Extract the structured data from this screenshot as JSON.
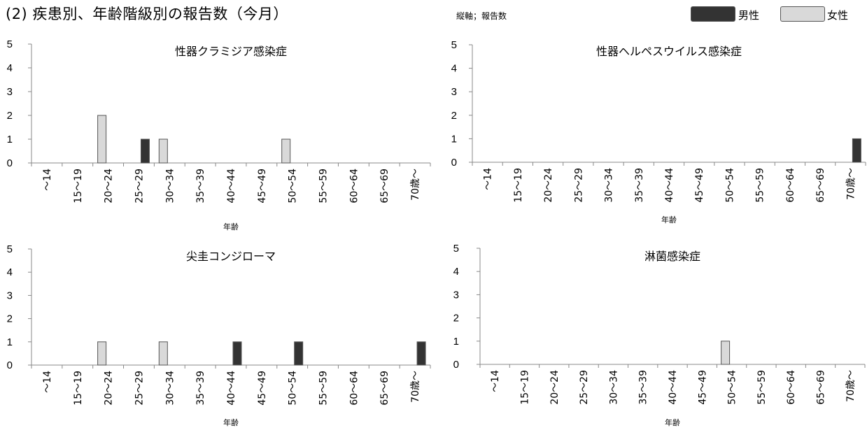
{
  "header": {
    "title": "(2) 疾患別、年齢階級別の報告数（今月）",
    "axis_note": "縦軸；報告数"
  },
  "legend": {
    "male": {
      "label": "男性",
      "color": "#333333"
    },
    "female": {
      "label": "女性",
      "color": "#d9d9d9"
    }
  },
  "chart_data": [
    {
      "type": "bar",
      "title": "性器クラミジア感染症",
      "xlabel": "年齢",
      "ylim": [
        0,
        5
      ],
      "yticks": [
        "0",
        "1",
        "2",
        "3",
        "4",
        "5"
      ],
      "categories": [
        "～14",
        "15～19",
        "20～24",
        "25～29",
        "30～34",
        "35～39",
        "40～44",
        "45～49",
        "50～54",
        "55～59",
        "60～64",
        "65～69",
        "70歳～"
      ],
      "series": [
        {
          "name": "男性",
          "values": [
            0,
            0,
            0,
            1,
            0,
            0,
            0,
            0,
            0,
            0,
            0,
            0,
            0
          ]
        },
        {
          "name": "女性",
          "values": [
            0,
            0,
            2,
            0,
            1,
            0,
            0,
            0,
            1,
            0,
            0,
            0,
            0
          ]
        }
      ]
    },
    {
      "type": "bar",
      "title": "性器ヘルペスウイルス感染症",
      "xlabel": "年齢",
      "ylim": [
        0,
        5
      ],
      "yticks": [
        "0",
        "1",
        "2",
        "3",
        "4",
        "5"
      ],
      "categories": [
        "～14",
        "15～19",
        "20～24",
        "25～29",
        "30～34",
        "35～39",
        "40～44",
        "45～49",
        "50～54",
        "55～59",
        "60～64",
        "65～69",
        "70歳～"
      ],
      "series": [
        {
          "name": "男性",
          "values": [
            0,
            0,
            0,
            0,
            0,
            0,
            0,
            0,
            0,
            0,
            0,
            0,
            1
          ]
        },
        {
          "name": "女性",
          "values": [
            0,
            0,
            0,
            0,
            0,
            0,
            0,
            0,
            0,
            0,
            0,
            0,
            0
          ]
        }
      ]
    },
    {
      "type": "bar",
      "title": "尖圭コンジローマ",
      "xlabel": "年齢",
      "ylim": [
        0,
        5
      ],
      "yticks": [
        "0",
        "1",
        "2",
        "3",
        "4",
        "5"
      ],
      "categories": [
        "～14",
        "15～19",
        "20～24",
        "25～29",
        "30～34",
        "35～39",
        "40～44",
        "45～49",
        "50～54",
        "55～59",
        "60～64",
        "65～69",
        "70歳～"
      ],
      "series": [
        {
          "name": "男性",
          "values": [
            0,
            0,
            0,
            0,
            0,
            0,
            1,
            0,
            1,
            0,
            0,
            0,
            1
          ]
        },
        {
          "name": "女性",
          "values": [
            0,
            0,
            1,
            0,
            1,
            0,
            0,
            0,
            0,
            0,
            0,
            0,
            0
          ]
        }
      ]
    },
    {
      "type": "bar",
      "title": "淋菌感染症",
      "xlabel": "年齢",
      "ylim": [
        0,
        5
      ],
      "yticks": [
        "0",
        "1",
        "2",
        "3",
        "4",
        "5"
      ],
      "categories": [
        "～14",
        "15～19",
        "20～24",
        "25～29",
        "30～34",
        "35～39",
        "40～44",
        "45～49",
        "50～54",
        "55～59",
        "60～64",
        "65～69",
        "70歳～"
      ],
      "series": [
        {
          "name": "男性",
          "values": [
            0,
            0,
            0,
            0,
            0,
            0,
            0,
            0,
            0,
            0,
            0,
            0,
            0
          ]
        },
        {
          "name": "女性",
          "values": [
            0,
            0,
            0,
            0,
            0,
            0,
            0,
            0,
            1,
            0,
            0,
            0,
            0
          ]
        }
      ]
    }
  ]
}
